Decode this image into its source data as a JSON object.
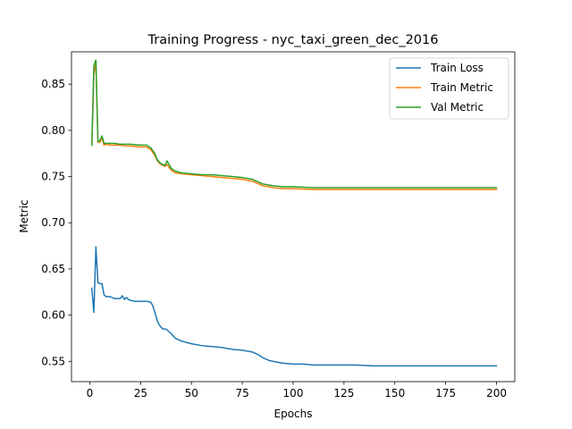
{
  "chart_data": {
    "type": "line",
    "title": "Training Progress - nyc_taxi_green_dec_2016",
    "xlabel": "Epochs",
    "ylabel": "Metric",
    "xlim": [
      -9,
      209
    ],
    "ylim": [
      0.528,
      0.885
    ],
    "xticks": [
      0,
      25,
      50,
      75,
      100,
      125,
      150,
      175,
      200
    ],
    "yticks": [
      0.55,
      0.6,
      0.65,
      0.7,
      0.75,
      0.8,
      0.85
    ],
    "xtick_labels": [
      "0",
      "25",
      "50",
      "75",
      "100",
      "125",
      "150",
      "175",
      "200"
    ],
    "ytick_labels": [
      "0.55",
      "0.60",
      "0.65",
      "0.70",
      "0.75",
      "0.80",
      "0.85"
    ],
    "grid": false,
    "legend_position": "top-right",
    "series": [
      {
        "name": "Train Loss",
        "color": "#1f77b4",
        "x": [
          1,
          2,
          3,
          4,
          5,
          6,
          7,
          8,
          10,
          12,
          14,
          15,
          16,
          17,
          18,
          19,
          20,
          22,
          25,
          28,
          30,
          31,
          32,
          33,
          34,
          35,
          36,
          37,
          38,
          40,
          42,
          45,
          50,
          55,
          60,
          65,
          70,
          75,
          80,
          83,
          85,
          88,
          90,
          95,
          100,
          105,
          110,
          120,
          130,
          140,
          150,
          160,
          170,
          180,
          190,
          200
        ],
        "y": [
          0.629,
          0.603,
          0.674,
          0.635,
          0.634,
          0.634,
          0.622,
          0.62,
          0.62,
          0.618,
          0.618,
          0.618,
          0.621,
          0.617,
          0.619,
          0.617,
          0.616,
          0.615,
          0.615,
          0.615,
          0.614,
          0.61,
          0.603,
          0.595,
          0.59,
          0.587,
          0.585,
          0.585,
          0.584,
          0.58,
          0.575,
          0.572,
          0.569,
          0.567,
          0.566,
          0.565,
          0.563,
          0.562,
          0.56,
          0.557,
          0.554,
          0.551,
          0.55,
          0.548,
          0.547,
          0.547,
          0.546,
          0.546,
          0.546,
          0.545,
          0.545,
          0.545,
          0.545,
          0.545,
          0.545,
          0.545
        ]
      },
      {
        "name": "Train Metric",
        "color": "#ff7f0e",
        "x": [
          1,
          2,
          3,
          4,
          5,
          6,
          7,
          8,
          10,
          12,
          15,
          18,
          20,
          25,
          28,
          30,
          32,
          33,
          34,
          35,
          36,
          37,
          38,
          40,
          42,
          45,
          50,
          55,
          60,
          65,
          70,
          75,
          80,
          83,
          85,
          88,
          90,
          95,
          100,
          110,
          120,
          130,
          140,
          150,
          160,
          170,
          180,
          190,
          200
        ],
        "y": [
          0.784,
          0.86,
          0.874,
          0.787,
          0.787,
          0.792,
          0.784,
          0.785,
          0.784,
          0.784,
          0.784,
          0.783,
          0.783,
          0.782,
          0.782,
          0.779,
          0.773,
          0.768,
          0.765,
          0.763,
          0.762,
          0.761,
          0.763,
          0.757,
          0.754,
          0.753,
          0.752,
          0.751,
          0.75,
          0.749,
          0.748,
          0.747,
          0.745,
          0.742,
          0.74,
          0.739,
          0.738,
          0.737,
          0.737,
          0.736,
          0.736,
          0.736,
          0.736,
          0.736,
          0.736,
          0.736,
          0.736,
          0.736,
          0.736
        ]
      },
      {
        "name": "Val Metric",
        "color": "#2ca02c",
        "x": [
          1,
          2,
          3,
          4,
          5,
          6,
          7,
          8,
          10,
          12,
          15,
          18,
          20,
          25,
          28,
          30,
          32,
          33,
          34,
          35,
          36,
          37,
          38,
          40,
          42,
          45,
          50,
          55,
          60,
          65,
          70,
          75,
          80,
          83,
          85,
          88,
          90,
          95,
          100,
          110,
          120,
          130,
          140,
          150,
          160,
          170,
          180,
          190,
          200
        ],
        "y": [
          0.784,
          0.87,
          0.876,
          0.788,
          0.789,
          0.794,
          0.786,
          0.786,
          0.786,
          0.786,
          0.785,
          0.785,
          0.785,
          0.784,
          0.784,
          0.781,
          0.775,
          0.769,
          0.766,
          0.764,
          0.763,
          0.762,
          0.767,
          0.759,
          0.756,
          0.754,
          0.753,
          0.752,
          0.752,
          0.751,
          0.75,
          0.749,
          0.747,
          0.744,
          0.742,
          0.741,
          0.74,
          0.739,
          0.739,
          0.738,
          0.738,
          0.738,
          0.738,
          0.738,
          0.738,
          0.738,
          0.738,
          0.738,
          0.738
        ]
      }
    ]
  }
}
